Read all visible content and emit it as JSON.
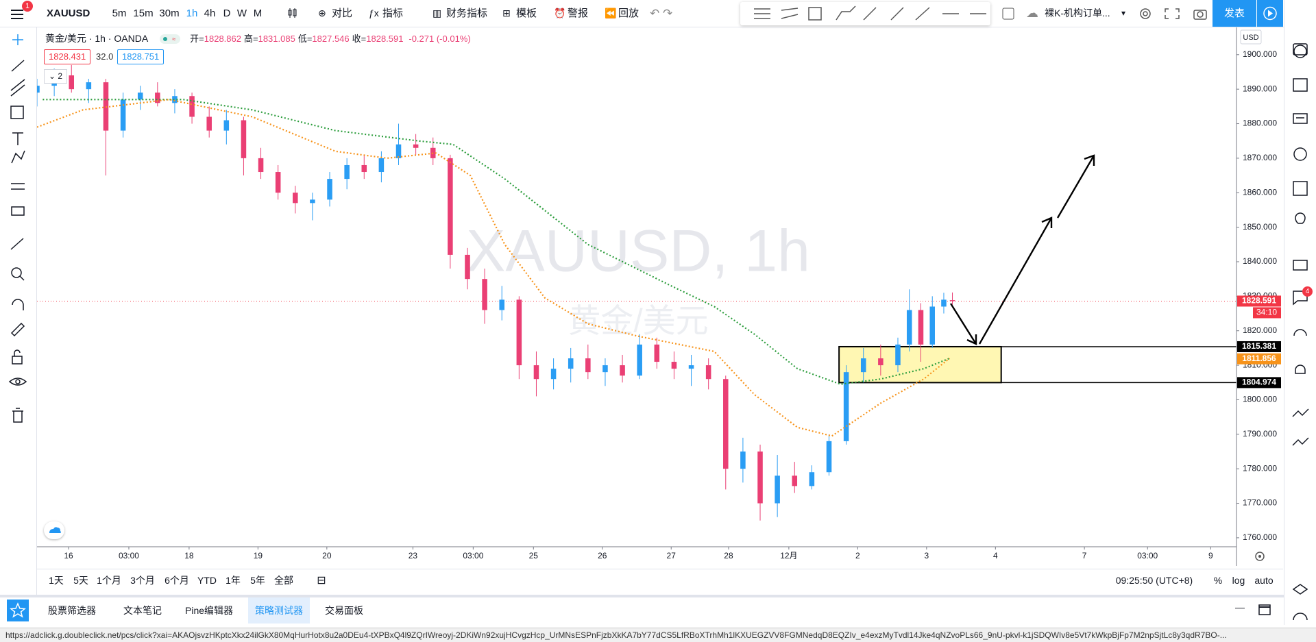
{
  "toolbar": {
    "symbol": "XAUUSD",
    "notification_count": "1",
    "intervals": [
      "5m",
      "15m",
      "30m",
      "1h",
      "4h",
      "D",
      "W",
      "M"
    ],
    "active_interval_index": 3,
    "buttons": [
      "对比",
      "指标",
      "财务指标",
      "模板",
      "警报",
      "回放"
    ],
    "layout_name": "裸K-机构订单...",
    "publish": "发表"
  },
  "legend": {
    "symbol": "黄金/美元",
    "interval": "1h",
    "exchange": "OANDA",
    "ohlc": [
      {
        "key": "开=",
        "value": "1828.862"
      },
      {
        "key": "高=",
        "value": "1831.085"
      },
      {
        "key": "低=",
        "value": "1827.546"
      },
      {
        "key": "收=",
        "value": "1828.591"
      }
    ],
    "change": "-0.271 (-0.01%)",
    "bid": "1828.431",
    "spread": "32.0",
    "ask": "1828.751",
    "indicator_count": "2"
  },
  "watermark": {
    "title": "XAUUSD, 1h",
    "subtitle": "黄金/美元"
  },
  "chart_data": {
    "type": "candlestick",
    "x": [
      0,
      6,
      12,
      18,
      24,
      30,
      36,
      42,
      48,
      54,
      60,
      66,
      72,
      78,
      84,
      90,
      96,
      102,
      108,
      114,
      120,
      126,
      132,
      138,
      144,
      150,
      156,
      162,
      168,
      174,
      180,
      186,
      192,
      198,
      204,
      210,
      216,
      222,
      228,
      234,
      240,
      246,
      252,
      258,
      264,
      270,
      276,
      282,
      288,
      294,
      300,
      304,
      308,
      312,
      316,
      319
    ],
    "open": [
      1889,
      1891,
      1894,
      1890,
      1892,
      1878,
      1887,
      1889,
      1886,
      1888,
      1882,
      1878,
      1881,
      1870,
      1866,
      1860,
      1857,
      1858,
      1864,
      1868,
      1866,
      1870,
      1874,
      1873,
      1870,
      1842,
      1835,
      1826,
      1829,
      1810,
      1806,
      1809,
      1812,
      1808,
      1810,
      1807,
      1816,
      1811,
      1809,
      1810,
      1806,
      1780,
      1785,
      1770,
      1778,
      1775,
      1779,
      1788,
      1808,
      1812,
      1810,
      1816,
      1826,
      1816,
      1827,
      1828.862
    ],
    "high": [
      1893,
      1896,
      1897,
      1893,
      1893,
      1889,
      1891,
      1892,
      1890,
      1889,
      1885,
      1884,
      1882,
      1873,
      1868,
      1862,
      1860,
      1866,
      1870,
      1871,
      1872,
      1880,
      1877,
      1876,
      1871,
      1844,
      1838,
      1833,
      1830,
      1814,
      1812,
      1815,
      1816,
      1812,
      1813,
      1819,
      1818,
      1814,
      1813,
      1812,
      1807,
      1789,
      1787,
      1784,
      1782,
      1781,
      1790,
      1810,
      1815,
      1816,
      1818,
      1832,
      1828,
      1830,
      1831,
      1831.085
    ],
    "low": [
      1885,
      1888,
      1889,
      1886,
      1865,
      1876,
      1884,
      1885,
      1883,
      1880,
      1876,
      1874,
      1865,
      1864,
      1858,
      1854,
      1852,
      1856,
      1861,
      1864,
      1863,
      1868,
      1871,
      1868,
      1838,
      1832,
      1822,
      1823,
      1806,
      1801,
      1803,
      1805,
      1806,
      1804,
      1805,
      1806,
      1809,
      1806,
      1804,
      1803,
      1774,
      1776,
      1765,
      1766,
      1773,
      1774,
      1778,
      1787,
      1805,
      1807,
      1808,
      1814,
      1811,
      1815,
      1825,
      1827.546
    ],
    "close": [
      1891,
      1894,
      1890,
      1892,
      1878,
      1887,
      1889,
      1886,
      1888,
      1882,
      1878,
      1881,
      1870,
      1866,
      1860,
      1857,
      1858,
      1864,
      1868,
      1866,
      1870,
      1874,
      1873,
      1870,
      1842,
      1835,
      1826,
      1829,
      1810,
      1806,
      1809,
      1812,
      1808,
      1810,
      1807,
      1816,
      1811,
      1809,
      1810,
      1806,
      1780,
      1785,
      1770,
      1778,
      1775,
      1779,
      1788,
      1808,
      1812,
      1810,
      1816,
      1826,
      1816,
      1827,
      1829,
      1828.591
    ],
    "up_color": "#2a9df4",
    "down_color": "#ea3f74",
    "xlim": [
      0,
      418
    ],
    "ylim": [
      1757.4,
      1908.1
    ],
    "xticks": [
      {
        "value": 11,
        "label": "16"
      },
      {
        "value": 32,
        "label": "03:00"
      },
      {
        "value": 53,
        "label": "18"
      },
      {
        "value": 77,
        "label": "19"
      },
      {
        "value": 101,
        "label": "20"
      },
      {
        "value": 131,
        "label": "23"
      },
      {
        "value": 152,
        "label": "03:00"
      },
      {
        "value": 173,
        "label": "25"
      },
      {
        "value": 197,
        "label": "26"
      },
      {
        "value": 221,
        "label": "27"
      },
      {
        "value": 241,
        "label": "28"
      },
      {
        "value": 262,
        "label": "12月"
      },
      {
        "value": 286,
        "label": "2"
      },
      {
        "value": 310,
        "label": "3"
      },
      {
        "value": 334,
        "label": "4"
      },
      {
        "value": 365,
        "label": "7"
      },
      {
        "value": 387,
        "label": "03:00"
      },
      {
        "value": 409,
        "label": "9"
      }
    ],
    "yticks": [
      {
        "value": 1760,
        "label": "1760.000"
      },
      {
        "value": 1770,
        "label": "1770.000"
      },
      {
        "value": 1780,
        "label": "1780.000"
      },
      {
        "value": 1790,
        "label": "1790.000"
      },
      {
        "value": 1800,
        "label": "1800.000"
      },
      {
        "value": 1810,
        "label": "1810.000"
      },
      {
        "value": 1820,
        "label": "1820.000"
      },
      {
        "value": 1830,
        "label": "1830.000"
      },
      {
        "value": 1840,
        "label": "1840.000"
      },
      {
        "value": 1850,
        "label": "1850.000"
      },
      {
        "value": 1860,
        "label": "1860.000"
      },
      {
        "value": 1870,
        "label": "1870.000"
      },
      {
        "value": 1880,
        "label": "1880.000"
      },
      {
        "value": 1890,
        "label": "1890.000"
      },
      {
        "value": 1900,
        "label": "1900.000"
      }
    ],
    "lines": [
      {
        "color": "#2e9e3e",
        "x": [
          2,
          51,
          75,
          104,
          133,
          145,
          163,
          192,
          221,
          236,
          250,
          265,
          280,
          294,
          309,
          318
        ],
        "values": [
          1887,
          1887,
          1884,
          1878,
          1875,
          1874,
          1864,
          1845,
          1833,
          1827,
          1819,
          1809,
          1804.5,
          1806,
          1809,
          1812
        ]
      },
      {
        "color": "#f7931a",
        "x": [
          0,
          16,
          46,
          75,
          104,
          122,
          139,
          151,
          163,
          177,
          192,
          209,
          236,
          250,
          265,
          277,
          294,
          309,
          318
        ],
        "values": [
          1879,
          1884,
          1887,
          1882,
          1872,
          1870,
          1871.5,
          1865,
          1845,
          1829.5,
          1822,
          1818.5,
          1814,
          1801.5,
          1792,
          1789.5,
          1799,
          1806,
          1812
        ]
      }
    ],
    "current_price": {
      "value": 1828.591,
      "color": "#f23645"
    },
    "ma_marker": {
      "value": 1811.856,
      "color": "#f7931a"
    },
    "zone": {
      "x": [
        279.5,
        336
      ],
      "top": 1815.381,
      "bottom": 1804.974,
      "fill": "#fff7b3"
    }
  },
  "price_axis": {
    "currency": "USD",
    "countdown": "34:10"
  },
  "range_bar": {
    "ranges": [
      "1天",
      "5天",
      "1个月",
      "3个月",
      "6个月",
      "YTD",
      "1年",
      "5年",
      "全部"
    ],
    "time": "09:25:50 (UTC+8)",
    "options": [
      "%",
      "log",
      "auto"
    ]
  },
  "tabs": {
    "items": [
      "股票筛选器",
      "文本笔记",
      "Pine编辑器",
      "策略测试器",
      "交易面板"
    ],
    "active_index": 3
  },
  "right_sidebar": {
    "chat_badge": "4"
  },
  "status_url": "https://adclick.g.doubleclick.net/pcs/click?xai=AKAOjsvzHKptcXkx24ilGkX80MqHurHotx8u2a0DEu4-tXPBxQ4l9ZQrIWreoyj-2DKiWn92xujHCvgzHcp_UrMNsESPnFjzbXkKA7bY77dCS5LfRBoXTrhMh1lKXUEGZVV8FGMNedqD8EQZIv_e4exzMyTvdl14Jke4qNZvoPLs66_9nU-pkvl-k1jSDQWIv8e5Vt7kWkpBjFp7M2npSjtLc8y3qdR7BO-..."
}
